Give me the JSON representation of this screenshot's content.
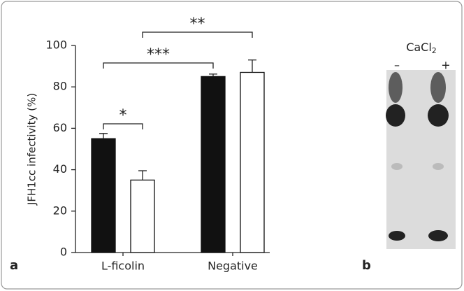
{
  "chart_data": {
    "type": "bar",
    "ylabel": "JFH1cc infectivity (%)",
    "categories": [
      "L-ficolin",
      "Negative"
    ],
    "series": [
      {
        "color": "#111111",
        "values": [
          55,
          85
        ],
        "errors": [
          2.5,
          1.2
        ]
      },
      {
        "color": "#ffffff",
        "values": [
          35,
          87
        ],
        "errors": [
          4.5,
          6
        ]
      }
    ],
    "ylim": [
      0,
      100
    ],
    "yticks": [
      0,
      20,
      40,
      60,
      80,
      100
    ],
    "grid": false,
    "annotations": [
      "*",
      "***",
      "**"
    ],
    "panel_labels": [
      "a",
      "b"
    ]
  },
  "gel": {
    "title": "CaCl",
    "title_sub": "2",
    "lanes": [
      "–",
      "+"
    ]
  }
}
